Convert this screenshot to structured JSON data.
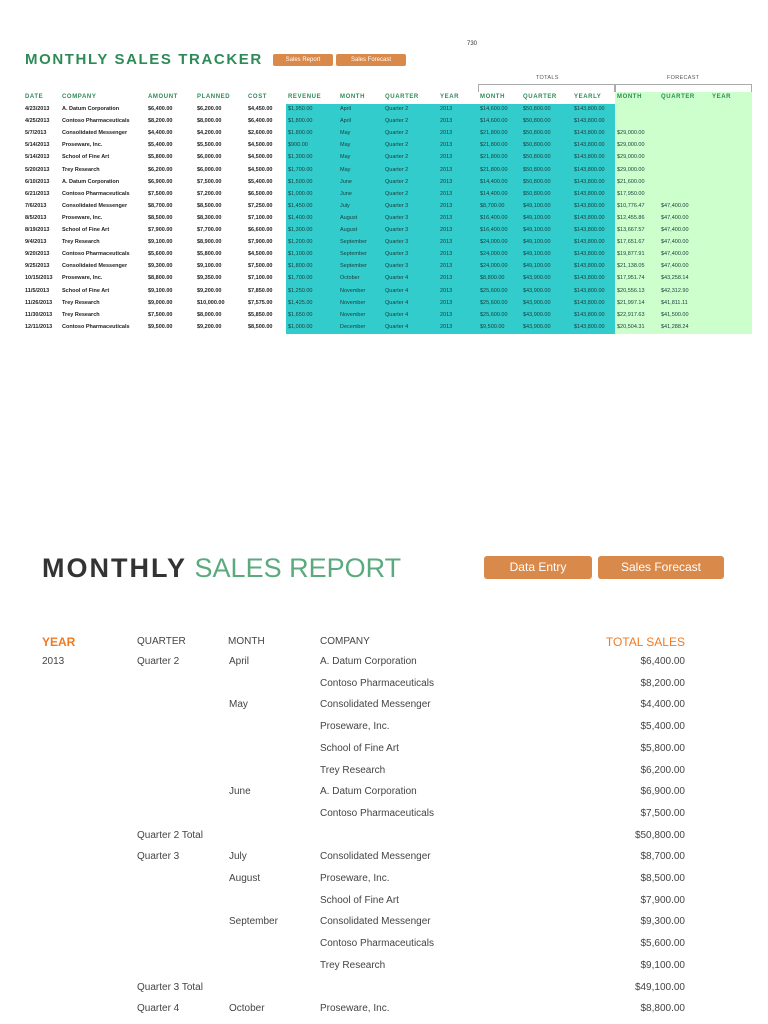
{
  "page_number": "730",
  "tracker": {
    "title": "MONTHLY SALES TRACKER",
    "buttons": {
      "sales_report": "Sales Report",
      "sales_forecast": "Sales Forecast"
    },
    "groups": {
      "totals": "TOTALS",
      "forecast": "FORECAST"
    },
    "headers": [
      "DATE",
      "COMPANY",
      "AMOUNT",
      "PLANNED",
      "COST",
      "REVENUE",
      "MONTH",
      "QUARTER",
      "YEAR",
      "MONTH",
      "QUARTER",
      "YEARLY",
      "MONTH",
      "QUARTER",
      "YEAR"
    ],
    "rows": [
      [
        "4/23/2013",
        "A. Datum Corporation",
        "$6,400.00",
        "$6,200.00",
        "$4,450.00",
        "$1,950.00",
        "April",
        "Quarter 2",
        "2013",
        "$14,600.00",
        "$50,800.00",
        "$143,800.00",
        "",
        "",
        ""
      ],
      [
        "4/25/2013",
        "Contoso Pharmaceuticals",
        "$8,200.00",
        "$8,000.00",
        "$6,400.00",
        "$1,800.00",
        "April",
        "Quarter 2",
        "2013",
        "$14,600.00",
        "$50,800.00",
        "$143,800.00",
        "",
        "",
        ""
      ],
      [
        "5/7/2013",
        "Consolidated Messenger",
        "$4,400.00",
        "$4,200.00",
        "$2,600.00",
        "$1,800.00",
        "May",
        "Quarter 2",
        "2013",
        "$21,800.00",
        "$50,800.00",
        "$143,800.00",
        "$29,000.00",
        "",
        ""
      ],
      [
        "5/14/2013",
        "Proseware, Inc.",
        "$5,400.00",
        "$5,500.00",
        "$4,500.00",
        "$900.00",
        "May",
        "Quarter 2",
        "2013",
        "$21,800.00",
        "$50,800.00",
        "$143,800.00",
        "$29,000.00",
        "",
        ""
      ],
      [
        "5/14/2013",
        "School of Fine Art",
        "$5,800.00",
        "$6,000.00",
        "$4,500.00",
        "$1,300.00",
        "May",
        "Quarter 2",
        "2013",
        "$21,800.00",
        "$50,800.00",
        "$143,800.00",
        "$29,000.00",
        "",
        ""
      ],
      [
        "5/20/2013",
        "Trey Research",
        "$6,200.00",
        "$6,000.00",
        "$4,500.00",
        "$1,700.00",
        "May",
        "Quarter 2",
        "2013",
        "$21,800.00",
        "$50,800.00",
        "$143,800.00",
        "$29,000.00",
        "",
        ""
      ],
      [
        "6/10/2013",
        "A. Datum Corporation",
        "$6,900.00",
        "$7,500.00",
        "$5,400.00",
        "$1,500.00",
        "June",
        "Quarter 2",
        "2013",
        "$14,400.00",
        "$50,800.00",
        "$143,800.00",
        "$21,600.00",
        "",
        ""
      ],
      [
        "6/21/2013",
        "Contoso Pharmaceuticals",
        "$7,500.00",
        "$7,200.00",
        "$6,500.00",
        "$1,000.00",
        "June",
        "Quarter 2",
        "2013",
        "$14,400.00",
        "$50,800.00",
        "$143,800.00",
        "$17,950.00",
        "",
        ""
      ],
      [
        "7/6/2013",
        "Consolidated Messenger",
        "$8,700.00",
        "$8,500.00",
        "$7,250.00",
        "$1,450.00",
        "July",
        "Quarter 3",
        "2013",
        "$8,700.00",
        "$49,100.00",
        "$143,800.00",
        "$10,776.47",
        "$47,400.00",
        ""
      ],
      [
        "8/5/2013",
        "Proseware, Inc.",
        "$8,500.00",
        "$8,300.00",
        "$7,100.00",
        "$1,400.00",
        "August",
        "Quarter 3",
        "2013",
        "$16,400.00",
        "$49,100.00",
        "$143,800.00",
        "$12,455.86",
        "$47,400.00",
        ""
      ],
      [
        "8/19/2013",
        "School of Fine Art",
        "$7,900.00",
        "$7,700.00",
        "$6,600.00",
        "$1,300.00",
        "August",
        "Quarter 3",
        "2013",
        "$16,400.00",
        "$49,100.00",
        "$143,800.00",
        "$13,667.57",
        "$47,400.00",
        ""
      ],
      [
        "9/4/2013",
        "Trey Research",
        "$9,100.00",
        "$8,900.00",
        "$7,900.00",
        "$1,200.00",
        "September",
        "Quarter 3",
        "2013",
        "$24,000.00",
        "$49,100.00",
        "$143,800.00",
        "$17,651.67",
        "$47,400.00",
        ""
      ],
      [
        "9/20/2013",
        "Contoso Pharmaceuticals",
        "$5,600.00",
        "$5,800.00",
        "$4,500.00",
        "$1,100.00",
        "September",
        "Quarter 3",
        "2013",
        "$24,000.00",
        "$49,100.00",
        "$143,800.00",
        "$19,877.91",
        "$47,400.00",
        ""
      ],
      [
        "9/25/2013",
        "Consolidated Messenger",
        "$9,300.00",
        "$9,100.00",
        "$7,500.00",
        "$1,800.00",
        "September",
        "Quarter 3",
        "2013",
        "$24,000.00",
        "$49,100.00",
        "$143,800.00",
        "$21,138.05",
        "$47,400.00",
        ""
      ],
      [
        "10/15/2013",
        "Proseware, Inc.",
        "$8,800.00",
        "$9,350.00",
        "$7,100.00",
        "$1,700.00",
        "October",
        "Quarter 4",
        "2013",
        "$8,800.00",
        "$43,900.00",
        "$143,800.00",
        "$17,951.74",
        "$43,258.14",
        ""
      ],
      [
        "11/5/2013",
        "School of Fine Art",
        "$9,100.00",
        "$9,200.00",
        "$7,850.00",
        "$1,250.00",
        "November",
        "Quarter 4",
        "2013",
        "$25,600.00",
        "$43,900.00",
        "$143,800.00",
        "$20,556.13",
        "$42,312.90",
        ""
      ],
      [
        "11/26/2013",
        "Trey Research",
        "$9,000.00",
        "$10,000.00",
        "$7,575.00",
        "$1,425.00",
        "November",
        "Quarter 4",
        "2013",
        "$25,600.00",
        "$43,900.00",
        "$143,800.00",
        "$21,997.14",
        "$41,811.11",
        ""
      ],
      [
        "11/30/2013",
        "Trey Research",
        "$7,500.00",
        "$8,000.00",
        "$5,850.00",
        "$1,650.00",
        "November",
        "Quarter 4",
        "2013",
        "$25,600.00",
        "$43,900.00",
        "$143,800.00",
        "$22,917.63",
        "$41,500.00",
        ""
      ],
      [
        "12/11/2013",
        "Contoso Pharmaceuticals",
        "$9,500.00",
        "$9,200.00",
        "$8,500.00",
        "$1,000.00",
        "December",
        "Quarter 4",
        "2013",
        "$9,500.00",
        "$43,900.00",
        "$143,800.00",
        "$20,504.31",
        "$41,288.24",
        ""
      ]
    ]
  },
  "report": {
    "title_bold": "MONTHLY",
    "title_light": "SALES REPORT",
    "buttons": {
      "data_entry": "Data Entry",
      "sales_forecast": "Sales Forecast"
    },
    "headers": {
      "year": "YEAR",
      "quarter": "QUARTER",
      "month": "MONTH",
      "company": "COMPANY",
      "total_sales": "TOTAL SALES"
    },
    "rows": [
      {
        "year": "2013",
        "quarter": "Quarter 2",
        "month": "April",
        "company": "A. Datum Corporation",
        "amount": "$6,400.00"
      },
      {
        "year": "",
        "quarter": "",
        "month": "",
        "company": "Contoso Pharmaceuticals",
        "amount": "$8,200.00"
      },
      {
        "year": "",
        "quarter": "",
        "month": "May",
        "company": "Consolidated Messenger",
        "amount": "$4,400.00"
      },
      {
        "year": "",
        "quarter": "",
        "month": "",
        "company": "Proseware, Inc.",
        "amount": "$5,400.00"
      },
      {
        "year": "",
        "quarter": "",
        "month": "",
        "company": "School of Fine Art",
        "amount": "$5,800.00"
      },
      {
        "year": "",
        "quarter": "",
        "month": "",
        "company": "Trey Research",
        "amount": "$6,200.00"
      },
      {
        "year": "",
        "quarter": "",
        "month": "June",
        "company": "A. Datum Corporation",
        "amount": "$6,900.00"
      },
      {
        "year": "",
        "quarter": "",
        "month": "",
        "company": "Contoso Pharmaceuticals",
        "amount": "$7,500.00"
      },
      {
        "year": "",
        "quarter": "Quarter 2 Total",
        "month": "",
        "company": "",
        "amount": "$50,800.00"
      },
      {
        "year": "",
        "quarter": "Quarter 3",
        "month": "July",
        "company": "Consolidated Messenger",
        "amount": "$8,700.00"
      },
      {
        "year": "",
        "quarter": "",
        "month": "August",
        "company": "Proseware, Inc.",
        "amount": "$8,500.00"
      },
      {
        "year": "",
        "quarter": "",
        "month": "",
        "company": "School of Fine Art",
        "amount": "$7,900.00"
      },
      {
        "year": "",
        "quarter": "",
        "month": "September",
        "company": "Consolidated Messenger",
        "amount": "$9,300.00"
      },
      {
        "year": "",
        "quarter": "",
        "month": "",
        "company": "Contoso Pharmaceuticals",
        "amount": "$5,600.00"
      },
      {
        "year": "",
        "quarter": "",
        "month": "",
        "company": "Trey Research",
        "amount": "$9,100.00"
      },
      {
        "year": "",
        "quarter": "Quarter 3 Total",
        "month": "",
        "company": "",
        "amount": "$49,100.00"
      },
      {
        "year": "",
        "quarter": "Quarter 4",
        "month": "October",
        "company": "Proseware, Inc.",
        "amount": "$8,800.00"
      }
    ]
  },
  "colors": {
    "brand_green": "#2e8b57",
    "button_orange": "#d9894a",
    "header_orange": "#f07a22",
    "teal_fill": "#33cccc",
    "forecast_fill": "#ccffcc"
  }
}
